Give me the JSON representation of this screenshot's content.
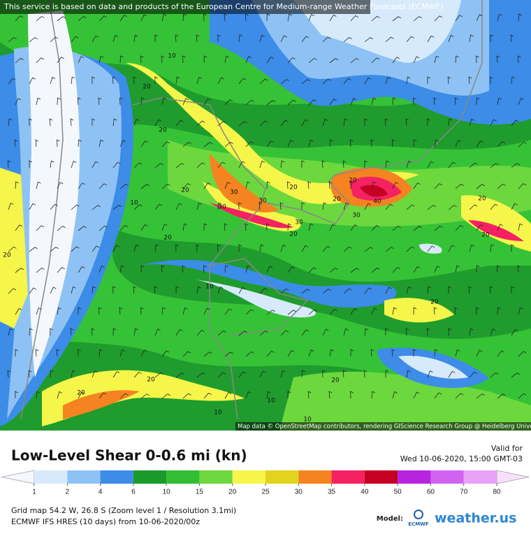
{
  "header": {
    "attribution_top": "This service is based on data and products of the European Centre for Medium-range Weather Forecasts (ECMWF)",
    "attribution_map": "Map data © OpenStreetMap contributors, rendering GIScience Research Group @ Heidelberg University"
  },
  "map": {
    "contour_labels": [
      "20",
      "20",
      "20",
      "20",
      "30",
      "30",
      "20",
      "30",
      "30",
      "20",
      "40",
      "30",
      "20",
      "20",
      "20",
      "20",
      "10",
      "10",
      "20",
      "20",
      "10",
      "20",
      "20",
      "20",
      "10",
      "10",
      "10"
    ]
  },
  "legend": {
    "title": "Low-Level Shear 0-0.6 mi (kn)",
    "valid_label": "Valid for",
    "valid_time": "Wed 10-06-2020, 15:00 GMT-03",
    "ticks": [
      1,
      2,
      4,
      6,
      10,
      15,
      20,
      25,
      30,
      35,
      40,
      50,
      60,
      70,
      80
    ],
    "colors": [
      "#d7eafb",
      "#8ec2f4",
      "#3c8ce8",
      "#1b9a2c",
      "#32bd32",
      "#6ed83e",
      "#f5f54a",
      "#e2d31c",
      "#f58320",
      "#f42262",
      "#c50022",
      "#b624e0",
      "#d163f0",
      "#e8a3f6"
    ],
    "below_color": "#f4f8fd",
    "above_color": "#f7e0fa"
  },
  "footer": {
    "grid_line": "Grid map 54.2 W, 26.8 S (Zoom level 1 / Resolution 3.1mi)",
    "model_line": "ECMWF IFS HRES (10 days) from  10-06-2020/00z",
    "model_label": "Model:",
    "ecmwf_logo": "ECMWF",
    "brand": "weather.us"
  }
}
